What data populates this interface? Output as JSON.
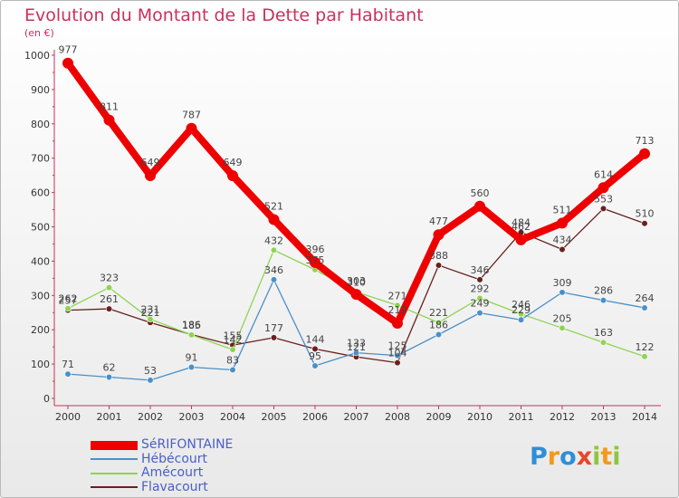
{
  "title": "Evolution du Montant de la Dette par Habitant",
  "unit_label": "(en €)",
  "logo": {
    "letters": [
      "P",
      "r",
      "o",
      "x",
      "i",
      "t",
      "i"
    ],
    "colors": [
      "#2f8fd6",
      "#f29a1c",
      "#2f8fd6",
      "#e8462a",
      "#8dc63f",
      "#f29a1c",
      "#8dc63f"
    ]
  },
  "chart_data": {
    "type": "line",
    "x": [
      "2000",
      "2001",
      "2002",
      "2003",
      "2004",
      "2005",
      "2006",
      "2007",
      "2008",
      "2009",
      "2010",
      "2011",
      "2012",
      "2013",
      "2014"
    ],
    "ylim": [
      0,
      1000
    ],
    "yticks": [
      "0",
      "100",
      "200",
      "300",
      "400",
      "500",
      "600",
      "700",
      "800",
      "900",
      "1000"
    ],
    "grid": false,
    "legend_position": "bottom-left",
    "series": [
      {
        "name": "SéRIFONTAINE",
        "color": "#ee0000",
        "values": [
          977,
          811,
          649,
          787,
          649,
          521,
          396,
          303,
          219,
          477,
          560,
          462,
          511,
          614,
          713
        ],
        "labels": [
          "977",
          "811",
          "649",
          "787",
          "649",
          "521",
          "396",
          "303",
          "219",
          "477",
          "560",
          "462",
          "511",
          "614",
          "713"
        ]
      },
      {
        "name": "Hébécourt",
        "color": "#4a8fc8",
        "values": [
          71,
          62,
          53,
          91,
          83,
          346,
          95,
          133,
          125,
          186,
          249,
          229,
          309,
          286,
          264
        ],
        "labels": [
          "71",
          "62",
          "53",
          "91",
          "83",
          "346",
          "95",
          "133",
          "125",
          "186",
          "249",
          "229",
          "309",
          "286",
          "264"
        ]
      },
      {
        "name": "Amécourt",
        "color": "#8fd454",
        "values": [
          262,
          323,
          231,
          185,
          142,
          432,
          375,
          310,
          271,
          221,
          292,
          246,
          205,
          163,
          122
        ],
        "labels": [
          "262",
          "323",
          "231",
          "185",
          "142",
          "432",
          "375",
          "310",
          "271",
          "221",
          "292",
          "246",
          "205",
          "163",
          "122"
        ]
      },
      {
        "name": "Flavacourt",
        "color": "#6b1f1f",
        "values": [
          257,
          261,
          221,
          186,
          155,
          177,
          144,
          121,
          104,
          388,
          346,
          484,
          434,
          553,
          510
        ],
        "labels": [
          "257",
          "261",
          "221",
          "186",
          "155",
          "177",
          "144",
          "121",
          "104",
          "388",
          "346",
          "484",
          "434",
          "553",
          "510"
        ]
      }
    ]
  }
}
